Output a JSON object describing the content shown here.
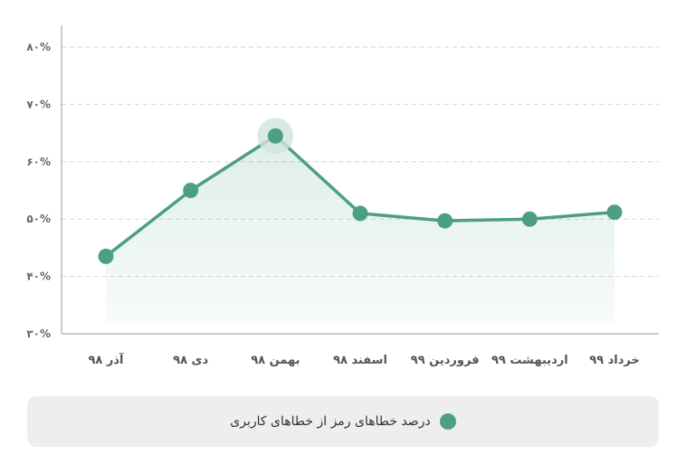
{
  "chart_data": {
    "type": "area",
    "categories": [
      "آذر ۹۸",
      "دی ۹۸",
      "بهمن ۹۸",
      "اسفند ۹۸",
      "فروردین ۹۹",
      "اردیبهشت ۹۹",
      "خرداد ۹۹"
    ],
    "series": [
      {
        "name": "درصد خطاهای رمز از خطاهای کاربری",
        "values": [
          43.5,
          55.0,
          64.5,
          51.0,
          49.7,
          50.0,
          51.2
        ]
      }
    ],
    "ylim": [
      30,
      80
    ],
    "yticks": [
      "۳۰%",
      "۴۰%",
      "۵۰%",
      "۶۰%",
      "۷۰%",
      "۸۰%"
    ],
    "highlight_index": 2,
    "grid": true,
    "legend_position": "bottom",
    "colors": {
      "line": "#4d9f84",
      "fill": "#4d9f84",
      "highlight_halo": "#cfe5dc",
      "grid": "#d6d6d6",
      "axis": "#999999"
    }
  }
}
